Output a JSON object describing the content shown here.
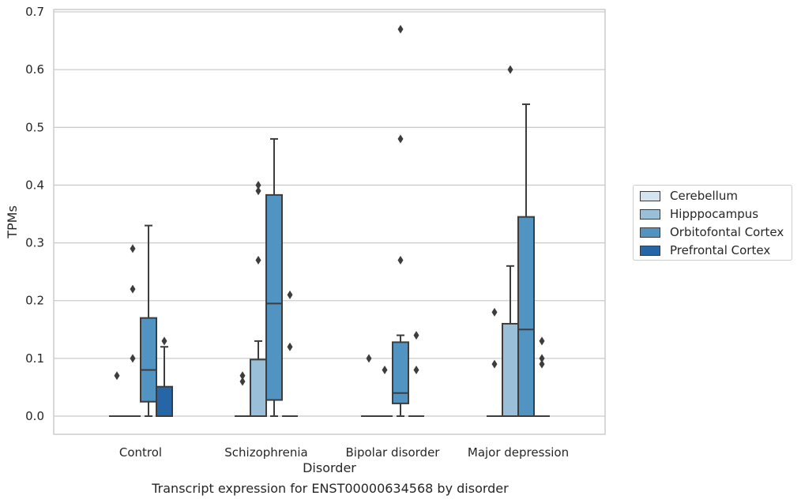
{
  "chart_data": {
    "type": "box",
    "title": "Transcript expression for ENST00000634568 by disorder",
    "xlabel": "Disorder",
    "ylabel": "TPMs",
    "ylim": [
      -0.032,
      0.705
    ],
    "yticks": [
      0.0,
      0.1,
      0.2,
      0.3,
      0.4,
      0.5,
      0.6,
      0.7
    ],
    "ytick_labels": [
      "0.0",
      "0.1",
      "0.2",
      "0.3",
      "0.4",
      "0.5",
      "0.6",
      "0.7"
    ],
    "grid": "horizontal",
    "legend_position": "right",
    "categories": [
      "Control",
      "Schizophrenia",
      "Bipolar disorder",
      "Major depression"
    ],
    "series": [
      {
        "name": "Cerebellum",
        "color": "#d4e3f0",
        "boxes": [
          {
            "q1": 0,
            "median": 0,
            "q3": 0,
            "whisker_low": 0,
            "whisker_high": 0,
            "outliers": [
              0.07
            ]
          },
          {
            "q1": 0,
            "median": 0,
            "q3": 0,
            "whisker_low": 0,
            "whisker_high": 0,
            "outliers": [
              0.07,
              0.06
            ]
          },
          {
            "q1": 0,
            "median": 0,
            "q3": 0,
            "whisker_low": 0,
            "whisker_high": 0,
            "outliers": [
              0.1
            ]
          },
          {
            "q1": 0,
            "median": 0,
            "q3": 0,
            "whisker_low": 0,
            "whisker_high": 0,
            "outliers": [
              0.18,
              0.09
            ]
          }
        ]
      },
      {
        "name": "Hipppocampus",
        "color": "#9ac0d9",
        "boxes": [
          {
            "q1": 0,
            "median": 0,
            "q3": 0,
            "whisker_low": 0,
            "whisker_high": 0,
            "outliers": [
              0.29,
              0.22,
              0.1
            ]
          },
          {
            "q1": 0,
            "median": 0,
            "q3": 0.098,
            "whisker_low": 0,
            "whisker_high": 0.13,
            "outliers": [
              0.4,
              0.39,
              0.27
            ]
          },
          {
            "q1": 0,
            "median": 0,
            "q3": 0,
            "whisker_low": 0,
            "whisker_high": 0,
            "outliers": [
              0.08
            ]
          },
          {
            "q1": 0,
            "median": 0,
            "q3": 0.16,
            "whisker_low": 0,
            "whisker_high": 0.26,
            "outliers": [
              0.6
            ]
          }
        ]
      },
      {
        "name": "Orbitofontal Cortex",
        "color": "#5193c1",
        "boxes": [
          {
            "q1": 0.025,
            "median": 0.08,
            "q3": 0.17,
            "whisker_low": 0,
            "whisker_high": 0.33,
            "outliers": []
          },
          {
            "q1": 0.028,
            "median": 0.195,
            "q3": 0.383,
            "whisker_low": 0,
            "whisker_high": 0.48,
            "outliers": []
          },
          {
            "q1": 0.022,
            "median": 0.04,
            "q3": 0.128,
            "whisker_low": 0,
            "whisker_high": 0.14,
            "outliers": [
              0.67,
              0.48,
              0.27
            ]
          },
          {
            "q1": 0,
            "median": 0.15,
            "q3": 0.345,
            "whisker_low": 0,
            "whisker_high": 0.54,
            "outliers": []
          }
        ]
      },
      {
        "name": "Prefrontal Cortex",
        "color": "#2766a6",
        "boxes": [
          {
            "q1": 0,
            "median": 0,
            "q3": 0.051,
            "whisker_low": 0,
            "whisker_high": 0.12,
            "outliers": [
              0.13
            ]
          },
          {
            "q1": 0,
            "median": 0,
            "q3": 0,
            "whisker_low": 0,
            "whisker_high": 0,
            "outliers": [
              0.21,
              0.12
            ]
          },
          {
            "q1": 0,
            "median": 0,
            "q3": 0,
            "whisker_low": 0,
            "whisker_high": 0,
            "outliers": [
              0.14,
              0.08
            ]
          },
          {
            "q1": 0,
            "median": 0,
            "q3": 0,
            "whisker_low": 0,
            "whisker_high": 0,
            "outliers": [
              0.13,
              0.1,
              0.09
            ]
          }
        ]
      }
    ]
  }
}
